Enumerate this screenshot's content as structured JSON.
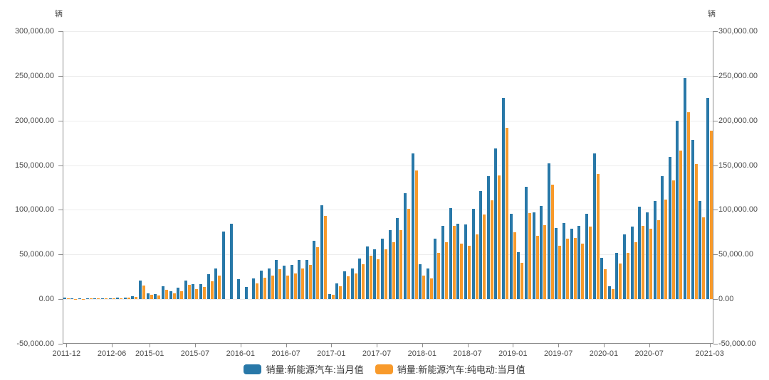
{
  "units": {
    "left": "辆",
    "right": "辆"
  },
  "colors": {
    "total": "#2878a8",
    "bev": "#f89a2b",
    "axis": "#8c8c8c",
    "grid": "#ececec",
    "text": "#4c4c4c"
  },
  "legend": [
    {
      "label": "销量:新能源汽车:当月值",
      "color": "#2878a8"
    },
    {
      "label": "销量:新能源汽车:纯电动:当月值",
      "color": "#f89a2b"
    }
  ],
  "y_axis": {
    "min": -50000,
    "max": 300000,
    "step": 50000,
    "tick_labels": [
      "300,000.00",
      "250,000.00",
      "200,000.00",
      "150,000.00",
      "100,000.00",
      "50,000.00",
      "0.00",
      "-50,000.00"
    ]
  },
  "x_axis": {
    "tick_slots": [
      0,
      6,
      11,
      17,
      23,
      29,
      35,
      41,
      47,
      53,
      59,
      65,
      71,
      77,
      85
    ],
    "tick_labels": [
      "2011-12",
      "2012-06",
      "2015-01",
      "2015-07",
      "2016-01",
      "2016-07",
      "2017-01",
      "2017-07",
      "2018-01",
      "2018-07",
      "2019-01",
      "2019-07",
      "2020-01",
      "2020-07",
      "2021-03"
    ]
  },
  "chart_data": {
    "type": "bar",
    "title": "",
    "xlabel": "",
    "ylabel": "辆",
    "ylim": [
      -50000,
      300000
    ],
    "grid": true,
    "legend_position": "bottom",
    "categories": [
      "2011-12",
      "2012-01",
      "2012-02",
      "2012-03",
      "2012-04",
      "2012-05",
      "2012-06",
      "2012-12",
      "2014-10",
      "2014-11",
      "2014-12",
      "2015-01",
      "2015-02",
      "2015-03",
      "2015-04",
      "2015-05",
      "2015-06",
      "2015-07",
      "2015-08",
      "2015-09",
      "2015-10",
      "2015-11",
      "2015-12",
      "2016-01",
      "2016-02",
      "2016-03",
      "2016-04",
      "2016-05",
      "2016-06",
      "2016-07",
      "2016-08",
      "2016-09",
      "2016-10",
      "2016-11",
      "2016-12",
      "2017-01",
      "2017-02",
      "2017-03",
      "2017-04",
      "2017-05",
      "2017-06",
      "2017-07",
      "2017-08",
      "2017-09",
      "2017-10",
      "2017-11",
      "2017-12",
      "2018-01",
      "2018-02",
      "2018-03",
      "2018-04",
      "2018-05",
      "2018-06",
      "2018-07",
      "2018-08",
      "2018-09",
      "2018-10",
      "2018-11",
      "2018-12",
      "2019-01",
      "2019-02",
      "2019-03",
      "2019-04",
      "2019-05",
      "2019-06",
      "2019-07",
      "2019-08",
      "2019-09",
      "2019-10",
      "2019-11",
      "2019-12",
      "2020-01",
      "2020-02",
      "2020-03",
      "2020-04",
      "2020-05",
      "2020-06",
      "2020-07",
      "2020-08",
      "2020-09",
      "2020-10",
      "2020-11",
      "2020-12",
      "2021-01",
      "2021-02",
      "2021-03"
    ],
    "series": [
      {
        "name": "销量:新能源汽车:当月值",
        "color": "#2878a8",
        "values": [
          1400,
          600,
          800,
          1000,
          1100,
          1200,
          1300,
          1600,
          2000,
          3000,
          21000,
          6663,
          6045,
          14122,
          9022,
          12641,
          21055,
          16567,
          17130,
          28324,
          34316,
          76000,
          84100,
          22600,
          14000,
          23300,
          32000,
          34700,
          43900,
          37300,
          38600,
          43900,
          43900,
          65100,
          105300,
          5682,
          17596,
          31120,
          34361,
          45100,
          59300,
          56100,
          68000,
          77600,
          91000,
          119000,
          163000,
          38700,
          34400,
          67800,
          81900,
          102000,
          84500,
          84000,
          101000,
          121000,
          138000,
          169000,
          225000,
          95700,
          52900,
          126000,
          97000,
          104000,
          152000,
          79400,
          85300,
          78600,
          82000,
          95300,
          163000,
          46400,
          14100,
          52200,
          72300,
          81300,
          103200,
          97200,
          109900,
          137700,
          159400,
          199800,
          247400,
          178600,
          109900,
          225000
        ]
      },
      {
        "name": "销量:新能源汽车:纯电动:当月值",
        "color": "#f89a2b",
        "values": [
          900,
          400,
          500,
          600,
          700,
          800,
          900,
          1100,
          1400,
          2200,
          15000,
          4800,
          4300,
          10300,
          6600,
          9200,
          15800,
          11200,
          13300,
          19900,
          26200,
          null,
          null,
          null,
          null,
          17500,
          23600,
          26000,
          33900,
          26700,
          28700,
          34700,
          38600,
          58000,
          92900,
          4800,
          14800,
          25400,
          28600,
          39100,
          48700,
          44500,
          56000,
          63800,
          77000,
          101000,
          144000,
          26500,
          23200,
          52000,
          64000,
          82000,
          62000,
          60000,
          72800,
          94500,
          111000,
          138500,
          191500,
          75000,
          40300,
          96000,
          71000,
          82600,
          128400,
          60100,
          68000,
          68600,
          62200,
          81300,
          140300,
          33700,
          11400,
          39700,
          51600,
          64100,
          82100,
          78600,
          88200,
          111700,
          132900,
          166700,
          209600,
          151400,
          91300,
          188500
        ]
      }
    ]
  }
}
